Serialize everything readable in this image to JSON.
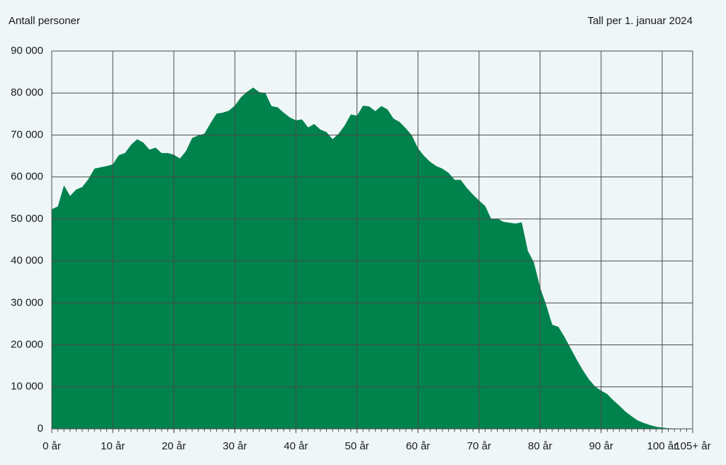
{
  "chart_data": {
    "type": "area",
    "title": "Antall personer",
    "subtitle": "Tall per 1. januar 2024",
    "x": [
      0,
      1,
      2,
      3,
      4,
      5,
      6,
      7,
      8,
      9,
      10,
      11,
      12,
      13,
      14,
      15,
      16,
      17,
      18,
      19,
      20,
      21,
      22,
      23,
      24,
      25,
      26,
      27,
      28,
      29,
      30,
      31,
      32,
      33,
      34,
      35,
      36,
      37,
      38,
      39,
      40,
      41,
      42,
      43,
      44,
      45,
      46,
      47,
      48,
      49,
      50,
      51,
      52,
      53,
      54,
      55,
      56,
      57,
      58,
      59,
      60,
      61,
      62,
      63,
      64,
      65,
      66,
      67,
      68,
      69,
      70,
      71,
      72,
      73,
      74,
      75,
      76,
      77,
      78,
      79,
      80,
      81,
      82,
      83,
      84,
      85,
      86,
      87,
      88,
      89,
      90,
      91,
      92,
      93,
      94,
      95,
      96,
      97,
      98,
      99,
      100,
      101,
      102,
      103,
      104,
      105
    ],
    "values": [
      52300,
      53000,
      58000,
      55500,
      57000,
      57600,
      59500,
      62000,
      62300,
      62600,
      63000,
      65200,
      65700,
      67700,
      69000,
      68200,
      66500,
      67000,
      65700,
      65700,
      65300,
      64400,
      66200,
      69300,
      69900,
      70300,
      72800,
      75100,
      75300,
      75800,
      77000,
      79000,
      80300,
      81300,
      80200,
      80000,
      76900,
      76600,
      75300,
      74200,
      73500,
      73700,
      71800,
      72600,
      71300,
      70700,
      69000,
      70300,
      72300,
      74900,
      74600,
      77000,
      76800,
      75700,
      76900,
      76100,
      73900,
      73100,
      71600,
      69900,
      66800,
      65000,
      63600,
      62600,
      62000,
      61000,
      59300,
      59300,
      57400,
      55800,
      54400,
      53100,
      50000,
      50100,
      49300,
      49100,
      48900,
      49200,
      42400,
      39600,
      33700,
      29500,
      24800,
      24300,
      21900,
      19200,
      16500,
      14000,
      11800,
      10100,
      9100,
      8300,
      6800,
      5500,
      4100,
      3000,
      2000,
      1400,
      900,
      500,
      300,
      150,
      80,
      40,
      20,
      10
    ],
    "color": "#00824d",
    "xlim": [
      0,
      105
    ],
    "ylim": [
      0,
      90000
    ],
    "xticks": [
      {
        "value": 0,
        "label": "0 år"
      },
      {
        "value": 10,
        "label": "10 år"
      },
      {
        "value": 20,
        "label": "20 år"
      },
      {
        "value": 30,
        "label": "30 år"
      },
      {
        "value": 40,
        "label": "40 år"
      },
      {
        "value": 50,
        "label": "50 år"
      },
      {
        "value": 60,
        "label": "60 år"
      },
      {
        "value": 70,
        "label": "70 år"
      },
      {
        "value": 80,
        "label": "80 år"
      },
      {
        "value": 90,
        "label": "90 år"
      },
      {
        "value": 100,
        "label": "100 år"
      },
      {
        "value": 105,
        "label": "105+ år"
      }
    ],
    "yticks": [
      0,
      {
        "value": 10000,
        "label": "10 000"
      },
      {
        "value": 20000,
        "label": "20 000"
      },
      {
        "value": 30000,
        "label": "30 000"
      },
      {
        "value": 40000,
        "label": "40 000"
      },
      {
        "value": 50000,
        "label": "50 000"
      },
      {
        "value": 60000,
        "label": "60 000"
      },
      {
        "value": 70000,
        "label": "70 000"
      },
      {
        "value": 80000,
        "label": "80 000"
      },
      {
        "value": 90000,
        "label": "90 000"
      }
    ],
    "grid": true
  }
}
